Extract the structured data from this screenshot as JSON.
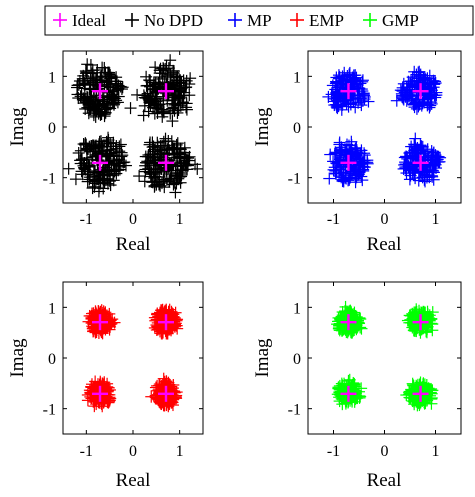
{
  "chart_data": [
    {
      "type": "scatter",
      "title": "",
      "xlabel": "Real",
      "ylabel": "Imag",
      "xlim": [
        -1.5,
        1.5
      ],
      "ylim": [
        -1.5,
        1.5
      ],
      "xticks": [
        -1,
        0,
        1
      ],
      "yticks": [
        -1,
        0,
        1
      ],
      "tick_labels_x": [
        "-1",
        "0",
        "1"
      ],
      "tick_labels_y": [
        "-1",
        "0",
        "1"
      ],
      "grid": false,
      "series": [
        {
          "name": "No DPD",
          "color": "#000000",
          "marker": "+",
          "cluster_centers": [
            [
              -0.707,
              0.707
            ],
            [
              0.707,
              0.707
            ],
            [
              -0.707,
              -0.707
            ],
            [
              0.707,
              -0.707
            ]
          ],
          "spread": 0.48
        },
        {
          "name": "Ideal",
          "color": "#ff00ff",
          "marker": "+",
          "x": [
            -0.707,
            0.707,
            -0.707,
            0.707
          ],
          "y": [
            0.707,
            0.707,
            -0.707,
            -0.707
          ]
        }
      ]
    },
    {
      "type": "scatter",
      "title": "",
      "xlabel": "Real",
      "ylabel": "Imag",
      "xlim": [
        -1.5,
        1.5
      ],
      "ylim": [
        -1.5,
        1.5
      ],
      "xticks": [
        -1,
        0,
        1
      ],
      "yticks": [
        -1,
        0,
        1
      ],
      "tick_labels_x": [
        "-1",
        "0",
        "1"
      ],
      "tick_labels_y": [
        "-1",
        "0",
        "1"
      ],
      "grid": false,
      "series": [
        {
          "name": "MP",
          "color": "#0000ff",
          "marker": "+",
          "cluster_centers": [
            [
              -0.707,
              0.707
            ],
            [
              0.707,
              0.707
            ],
            [
              -0.707,
              -0.707
            ],
            [
              0.707,
              -0.707
            ]
          ],
          "spread": 0.36
        },
        {
          "name": "Ideal",
          "color": "#ff00ff",
          "marker": "+",
          "x": [
            -0.707,
            0.707,
            -0.707,
            0.707
          ],
          "y": [
            0.707,
            0.707,
            -0.707,
            -0.707
          ]
        }
      ]
    },
    {
      "type": "scatter",
      "title": "",
      "xlabel": "Real",
      "ylabel": "Imag",
      "xlim": [
        -1.5,
        1.5
      ],
      "ylim": [
        -1.5,
        1.5
      ],
      "xticks": [
        -1,
        0,
        1
      ],
      "yticks": [
        -1,
        0,
        1
      ],
      "tick_labels_x": [
        "-1",
        "0",
        "1"
      ],
      "tick_labels_y": [
        "-1",
        "0",
        "1"
      ],
      "grid": false,
      "series": [
        {
          "name": "EMP",
          "color": "#ff0000",
          "marker": "+",
          "cluster_centers": [
            [
              -0.707,
              0.707
            ],
            [
              0.707,
              0.707
            ],
            [
              -0.707,
              -0.707
            ],
            [
              0.707,
              -0.707
            ]
          ],
          "spread": 0.24
        },
        {
          "name": "Ideal",
          "color": "#ff00ff",
          "marker": "+",
          "x": [
            -0.707,
            0.707,
            -0.707,
            0.707
          ],
          "y": [
            0.707,
            0.707,
            -0.707,
            -0.707
          ]
        }
      ]
    },
    {
      "type": "scatter",
      "title": "",
      "xlabel": "Real",
      "ylabel": "Imag",
      "xlim": [
        -1.5,
        1.5
      ],
      "ylim": [
        -1.5,
        1.5
      ],
      "xticks": [
        -1,
        0,
        1
      ],
      "yticks": [
        -1,
        0,
        1
      ],
      "tick_labels_x": [
        "-1",
        "0",
        "1"
      ],
      "tick_labels_y": [
        "-1",
        "0",
        "1"
      ],
      "grid": false,
      "series": [
        {
          "name": "GMP",
          "color": "#00ff00",
          "marker": "+",
          "cluster_centers": [
            [
              -0.707,
              0.707
            ],
            [
              0.707,
              0.707
            ],
            [
              -0.707,
              -0.707
            ],
            [
              0.707,
              -0.707
            ]
          ],
          "spread": 0.22
        },
        {
          "name": "Ideal",
          "color": "#ff00ff",
          "marker": "+",
          "x": [
            -0.707,
            0.707,
            -0.707,
            0.707
          ],
          "y": [
            0.707,
            0.707,
            -0.707,
            -0.707
          ]
        }
      ]
    }
  ],
  "legend": {
    "placement": "top",
    "entries": [
      {
        "label": "Ideal",
        "color": "#ff00ff"
      },
      {
        "label": "No DPD",
        "color": "#000000"
      },
      {
        "label": "MP",
        "color": "#0000ff"
      },
      {
        "label": "EMP",
        "color": "#ff0000"
      },
      {
        "label": "GMP",
        "color": "#00ff00"
      }
    ]
  }
}
